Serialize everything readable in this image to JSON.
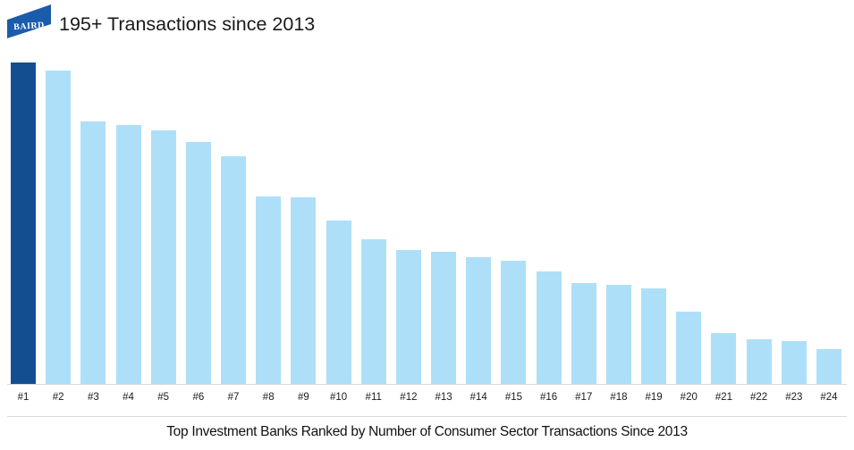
{
  "header": {
    "logo_text": "BAIRD",
    "title": "195+ Transactions since 2013"
  },
  "chart_data": {
    "type": "bar",
    "title": "195+ Transactions since 2013",
    "categories": [
      "#1",
      "#2",
      "#3",
      "#4",
      "#5",
      "#6",
      "#7",
      "#8",
      "#9",
      "#10",
      "#11",
      "#12",
      "#13",
      "#14",
      "#15",
      "#16",
      "#17",
      "#18",
      "#19",
      "#20",
      "#21",
      "#22",
      "#23",
      "#24"
    ],
    "values": [
      195,
      190,
      159,
      157,
      154,
      147,
      138,
      114,
      113,
      99,
      88,
      81,
      80,
      77,
      75,
      68,
      61,
      60,
      58,
      44,
      31,
      27,
      26,
      21
    ],
    "xlabel": "",
    "ylabel": "",
    "ylim": [
      0,
      195
    ],
    "grid": false,
    "legend": false,
    "highlight_index": 0,
    "highlight_color": "#134F90",
    "bar_color": "#AEDFF8",
    "axis_line_color": "#D9D9D9"
  },
  "footer": {
    "caption": "Top Investment Banks Ranked by Number of Consumer Sector Transactions Since 2013"
  },
  "colors": {
    "logo_blue": "#1A5CAB",
    "dark_bar": "#134F90",
    "light_bar": "#AEDFF8",
    "line_gray": "#D9D9D9",
    "background": "#FFFFFF",
    "text": "#1A1A1A"
  }
}
